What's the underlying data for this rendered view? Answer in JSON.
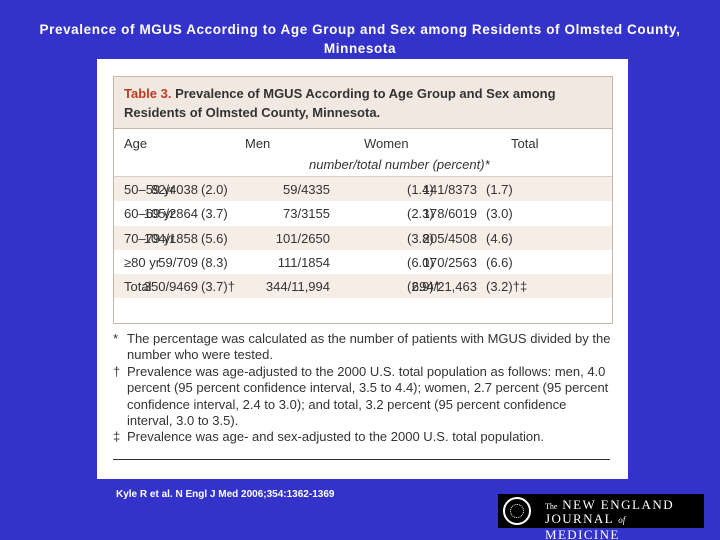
{
  "slide": {
    "title_line1": "Prevalence of MGUS According to Age Group and Sex among Residents of Olmsted County,",
    "title_line2": "Minnesota",
    "citation": "Kyle R et al. N Engl J Med 2006;354:1362-1369"
  },
  "table": {
    "number": "Table 3.",
    "caption_line1": "Prevalence of MGUS According to Age Group and Sex among",
    "caption_line2": "Residents of Olmsted County, Minnesota.",
    "columns": {
      "age": "Age",
      "men": "Men",
      "women": "Women",
      "total": "Total"
    },
    "unit_note": "number/total number (percent)*",
    "rows": [
      {
        "age": "50–59 yr",
        "men_count": "82/4038",
        "men_pct": "(2.0)",
        "women_count": "59/4335",
        "women_pct": "(1.4)",
        "total_count": "141/8373",
        "total_pct": "(1.7)"
      },
      {
        "age": "60–69 yr",
        "men_count": "105/2864",
        "men_pct": "(3.7)",
        "women_count": "73/3155",
        "women_pct": "(2.3)",
        "total_count": "178/6019",
        "total_pct": "(3.0)"
      },
      {
        "age": "70–79 yr",
        "men_count": "104/1858",
        "men_pct": "(5.6)",
        "women_count": "101/2650",
        "women_pct": "(3.8)",
        "total_count": "205/4508",
        "total_pct": "(4.6)"
      },
      {
        "age": "≥80 yr",
        "men_count": "59/709",
        "men_pct": "(8.3)",
        "women_count": "111/1854",
        "women_pct": "(6.0)",
        "total_count": "170/2563",
        "total_pct": "(6.6)"
      },
      {
        "age": "Total",
        "men_count": "350/9469",
        "men_pct": "(3.7)†",
        "women_count": "344/11,994",
        "women_pct": "(2.9)†",
        "total_count": "694/21,463",
        "total_pct": "(3.2)†‡"
      }
    ]
  },
  "footnotes": [
    {
      "mark": "*",
      "text": "The percentage was calculated as the number of patients with MGUS divided by the number who were tested."
    },
    {
      "mark": "†",
      "text": "Prevalence was age-adjusted to the 2000 U.S. total population as follows: men, 4.0 percent (95 percent confidence interval, 3.5 to 4.4); women, 2.7 percent (95 percent confidence interval, 2.4 to 3.0); and total, 3.2 percent (95 percent confidence interval, 3.0 to 3.5)."
    },
    {
      "mark": "‡",
      "text": "Prevalence was age- and sex-adjusted to the 2000 U.S. total population."
    }
  ],
  "logo": {
    "line1_the": "The",
    "line1_rest": "NEW ENGLAND",
    "line2_a": "JOURNAL",
    "line2_of": "of",
    "line2_b": "MEDICINE"
  },
  "colors": {
    "slide_background": "#3333cc",
    "table_header_background": "#f1e9e1",
    "table_number": "#c0391f",
    "row_shade": "#f5ede6"
  }
}
